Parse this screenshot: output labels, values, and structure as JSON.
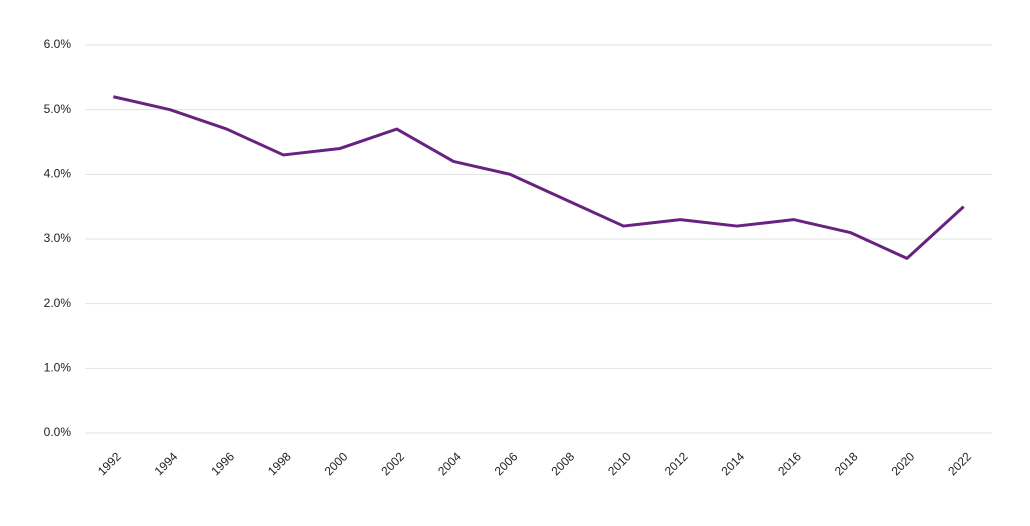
{
  "chart_data": {
    "type": "line",
    "categories": [
      "1992",
      "1994",
      "1996",
      "1998",
      "2000",
      "2002",
      "2004",
      "2006",
      "2008",
      "2010",
      "2012",
      "2014",
      "2016",
      "2018",
      "2020",
      "2022"
    ],
    "values": [
      5.2,
      5.0,
      4.7,
      4.3,
      4.4,
      4.7,
      4.2,
      4.0,
      3.6,
      3.2,
      3.3,
      3.2,
      3.3,
      3.1,
      2.7,
      3.5
    ],
    "color": "#68227f",
    "ylim": [
      0,
      6
    ],
    "yticks": [
      {
        "value": 0,
        "label": "0.0%"
      },
      {
        "value": 1,
        "label": "1.0%"
      },
      {
        "value": 2,
        "label": "2.0%"
      },
      {
        "value": 3,
        "label": "3.0%"
      },
      {
        "value": 4,
        "label": "4.0%"
      },
      {
        "value": 5,
        "label": "5.0%"
      },
      {
        "value": 6,
        "label": "6.0%"
      }
    ],
    "grid": true
  }
}
